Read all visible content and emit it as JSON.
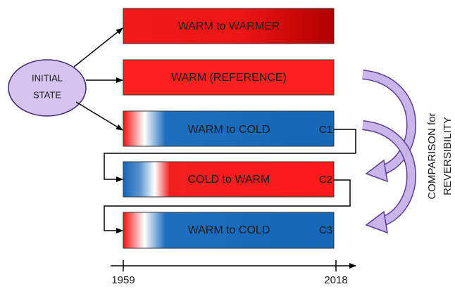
{
  "initial_state": {
    "lines": [
      "INITIAL",
      "STATE"
    ]
  },
  "boxes": [
    {
      "label": "WARM to WARMER"
    },
    {
      "label": "WARM (REFERENCE)"
    },
    {
      "label": "WARM to COLD",
      "code": "C1"
    },
    {
      "label": "COLD to WARM",
      "code": "C2"
    },
    {
      "label": "WARM to COLD",
      "code": "C3"
    }
  ],
  "side_label": {
    "lines": [
      "COMPARISON for",
      "REVERSIBILITY"
    ]
  },
  "timeline": {
    "start": "1959",
    "end": "2018"
  }
}
